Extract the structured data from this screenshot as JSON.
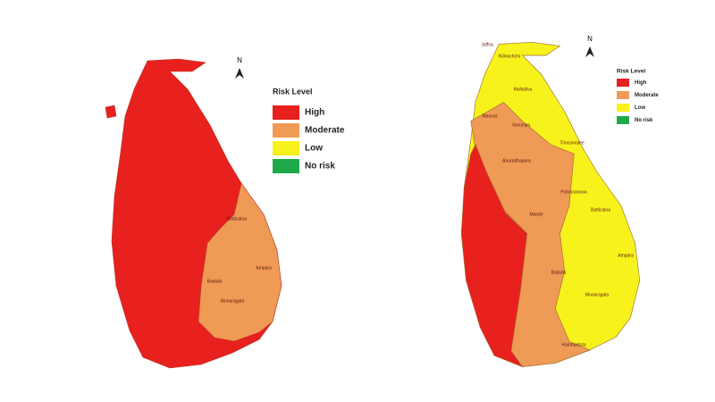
{
  "maps": [
    {
      "north": "N",
      "legend": {
        "title": "Risk Level",
        "items": [
          {
            "label": "High",
            "color": "#e8201e"
          },
          {
            "label": "Moderate",
            "color": "#ef9a55"
          },
          {
            "label": "Low",
            "color": "#f8f21c"
          },
          {
            "label": "No risk",
            "color": "#1faa4a"
          }
        ]
      },
      "district_labels": [
        "Batticaloa",
        "Ampara",
        "Badulla",
        "Monaragala"
      ]
    },
    {
      "north": "N",
      "legend": {
        "title": "Risk Level",
        "items": [
          {
            "label": "High",
            "color": "#e8201e"
          },
          {
            "label": "Moderate",
            "color": "#ef9a55"
          },
          {
            "label": "Low",
            "color": "#f8f21c"
          },
          {
            "label": "No risk",
            "color": "#1faa4a"
          }
        ]
      },
      "district_labels": [
        "Jaffna",
        "Kilinochchi",
        "Mullaitivu",
        "Mannar",
        "Vavuniya",
        "Trincomalee",
        "Anuradhapura",
        "Polonnaruwa",
        "Matale",
        "Batticaloa",
        "Ampara",
        "Badulla",
        "Monaragala",
        "Hambantota"
      ]
    }
  ]
}
